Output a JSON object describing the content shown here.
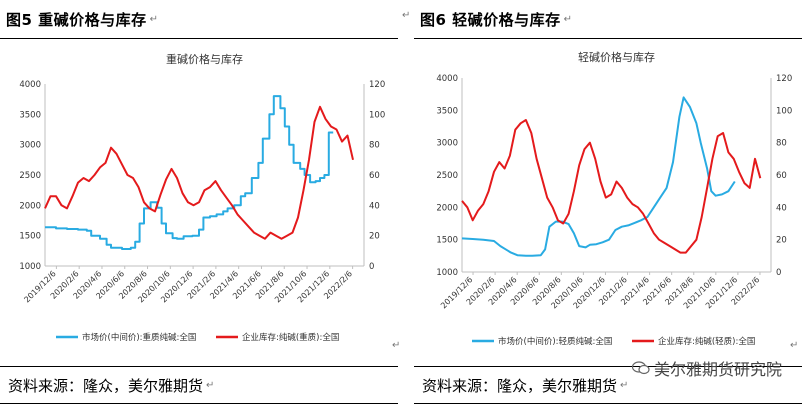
{
  "left_panel": {
    "header": "图5  重碱价格与库存",
    "source": "资料来源：隆众，美尔雅期货"
  },
  "right_panel": {
    "header": "图6    轻碱价格与库存",
    "source": "资料来源：隆众，美尔雅期货"
  },
  "paragraph_mark": "↵",
  "watermark": "美尔雅期货研究院",
  "chart_data": [
    {
      "type": "line",
      "title": "重碱价格与库存",
      "x_ticks": [
        "2019/12/6",
        "2020/2/6",
        "2020/4/6",
        "2020/6/6",
        "2020/8/6",
        "2020/10/6",
        "2020/12/6",
        "2021/2/6",
        "2021/4/6",
        "2021/6/6",
        "2021/8/6",
        "2021/10/6",
        "2021/12/6",
        "2022/2/6"
      ],
      "x_range": [
        0,
        29
      ],
      "ylim_left": [
        1000,
        4000
      ],
      "yticks_left": [
        1000,
        1500,
        2000,
        2500,
        3000,
        3500,
        4000
      ],
      "ylim_right": [
        0,
        120
      ],
      "yticks_right": [
        0,
        20,
        40,
        60,
        80,
        100,
        120
      ],
      "legend_position": "bottom",
      "series": [
        {
          "name": "市场价(中间价):重质纯碱:全国",
          "color": "#29abe2",
          "axis": "left",
          "step": true,
          "points": [
            [
              0,
              1640
            ],
            [
              1,
              1620
            ],
            [
              2,
              1610
            ],
            [
              3,
              1600
            ],
            [
              3.8,
              1580
            ],
            [
              4.2,
              1500
            ],
            [
              5,
              1450
            ],
            [
              5.6,
              1350
            ],
            [
              6,
              1300
            ],
            [
              7,
              1280
            ],
            [
              7.8,
              1300
            ],
            [
              8.2,
              1400
            ],
            [
              8.6,
              1700
            ],
            [
              9,
              1950
            ],
            [
              9.6,
              2050
            ],
            [
              10.2,
              1960
            ],
            [
              10.6,
              1700
            ],
            [
              11,
              1540
            ],
            [
              11.6,
              1460
            ],
            [
              12,
              1450
            ],
            [
              12.6,
              1490
            ],
            [
              13.4,
              1500
            ],
            [
              14,
              1600
            ],
            [
              14.4,
              1800
            ],
            [
              15,
              1820
            ],
            [
              15.6,
              1850
            ],
            [
              16.2,
              1900
            ],
            [
              16.6,
              1950
            ],
            [
              17.2,
              2000
            ],
            [
              17.8,
              2150
            ],
            [
              18.2,
              2200
            ],
            [
              18.8,
              2450
            ],
            [
              19.4,
              2700
            ],
            [
              19.8,
              3100
            ],
            [
              20.4,
              3500
            ],
            [
              20.8,
              3800
            ],
            [
              21.4,
              3600
            ],
            [
              21.8,
              3300
            ],
            [
              22.2,
              3000
            ],
            [
              22.6,
              2700
            ],
            [
              23.2,
              2600
            ],
            [
              23.6,
              2500
            ],
            [
              24.1,
              2380
            ],
            [
              24.6,
              2400
            ],
            [
              25,
              2450
            ],
            [
              25.4,
              2500
            ],
            [
              25.8,
              3200
            ],
            [
              26.2,
              3200
            ]
          ]
        },
        {
          "name": "企业库存:纯碱(重质):全国",
          "color": "#e41a1c",
          "axis": "right",
          "step": false,
          "points": [
            [
              0,
              38
            ],
            [
              0.5,
              46
            ],
            [
              1,
              46
            ],
            [
              1.5,
              40
            ],
            [
              2,
              38
            ],
            [
              2.5,
              46
            ],
            [
              3,
              55
            ],
            [
              3.5,
              58
            ],
            [
              4,
              56
            ],
            [
              4.5,
              60
            ],
            [
              5,
              65
            ],
            [
              5.5,
              68
            ],
            [
              6,
              78
            ],
            [
              6.5,
              74
            ],
            [
              7,
              67
            ],
            [
              7.5,
              60
            ],
            [
              8,
              58
            ],
            [
              8.5,
              52
            ],
            [
              9,
              42
            ],
            [
              9.5,
              38
            ],
            [
              10,
              36
            ],
            [
              10.5,
              47
            ],
            [
              11,
              57
            ],
            [
              11.5,
              64
            ],
            [
              12,
              58
            ],
            [
              12.5,
              48
            ],
            [
              13,
              42
            ],
            [
              13.5,
              40
            ],
            [
              14,
              42
            ],
            [
              14.5,
              50
            ],
            [
              15,
              52
            ],
            [
              15.5,
              56
            ],
            [
              16,
              50
            ],
            [
              16.5,
              45
            ],
            [
              17,
              40
            ],
            [
              17.5,
              34
            ],
            [
              18,
              30
            ],
            [
              18.5,
              26
            ],
            [
              19,
              22
            ],
            [
              19.5,
              20
            ],
            [
              20,
              18
            ],
            [
              20.5,
              22
            ],
            [
              21,
              20
            ],
            [
              21.5,
              18
            ],
            [
              22,
              20
            ],
            [
              22.5,
              22
            ],
            [
              23,
              32
            ],
            [
              23.5,
              50
            ],
            [
              24,
              70
            ],
            [
              24.5,
              95
            ],
            [
              25,
              105
            ],
            [
              25.5,
              97
            ],
            [
              26,
              92
            ],
            [
              26.5,
              90
            ],
            [
              27,
              82
            ],
            [
              27.5,
              86
            ],
            [
              28,
              70
            ]
          ]
        }
      ]
    },
    {
      "type": "line",
      "title": "轻碱价格与库存",
      "x_ticks": [
        "2019/12/6",
        "2020/2/6",
        "2020/4/6",
        "2020/6/6",
        "2020/8/6",
        "2020/10/6",
        "2020/12/6",
        "2021/2/6",
        "2021/4/6",
        "2021/6/6",
        "2021/8/6",
        "2021/10/6",
        "2021/12/6",
        "2022/2/6"
      ],
      "x_range": [
        0,
        29
      ],
      "ylim_left": [
        1000,
        4000
      ],
      "yticks_left": [
        1000,
        1500,
        2000,
        2500,
        3000,
        3500,
        4000
      ],
      "ylim_right": [
        0,
        120
      ],
      "yticks_right": [
        0,
        20,
        40,
        60,
        80,
        100,
        120
      ],
      "legend_position": "bottom",
      "series": [
        {
          "name": "市场价(中间价):轻质纯碱:全国",
          "color": "#29abe2",
          "axis": "left",
          "step": false,
          "points": [
            [
              0,
              1520
            ],
            [
              1,
              1510
            ],
            [
              2,
              1500
            ],
            [
              3,
              1480
            ],
            [
              3.6,
              1400
            ],
            [
              4,
              1360
            ],
            [
              4.6,
              1300
            ],
            [
              5.2,
              1260
            ],
            [
              6,
              1250
            ],
            [
              6.6,
              1250
            ],
            [
              7.4,
              1260
            ],
            [
              7.8,
              1350
            ],
            [
              8.2,
              1700
            ],
            [
              8.8,
              1780
            ],
            [
              9.4,
              1780
            ],
            [
              10,
              1740
            ],
            [
              10.5,
              1600
            ],
            [
              11,
              1400
            ],
            [
              11.6,
              1380
            ],
            [
              12,
              1420
            ],
            [
              12.6,
              1430
            ],
            [
              13.2,
              1460
            ],
            [
              13.8,
              1500
            ],
            [
              14.4,
              1650
            ],
            [
              15,
              1700
            ],
            [
              15.6,
              1720
            ],
            [
              16.2,
              1760
            ],
            [
              16.8,
              1800
            ],
            [
              17.4,
              1850
            ],
            [
              18,
              2000
            ],
            [
              18.6,
              2150
            ],
            [
              19.2,
              2300
            ],
            [
              19.8,
              2700
            ],
            [
              20.4,
              3400
            ],
            [
              20.8,
              3700
            ],
            [
              21.4,
              3550
            ],
            [
              22,
              3300
            ],
            [
              22.4,
              3000
            ],
            [
              23,
              2600
            ],
            [
              23.4,
              2250
            ],
            [
              23.8,
              2180
            ],
            [
              24.4,
              2200
            ],
            [
              25,
              2250
            ],
            [
              25.6,
              2400
            ]
          ]
        },
        {
          "name": "企业库存:纯碱(轻质):全国",
          "color": "#e41a1c",
          "axis": "right",
          "step": false,
          "points": [
            [
              0,
              44
            ],
            [
              0.5,
              40
            ],
            [
              1,
              32
            ],
            [
              1.5,
              38
            ],
            [
              2,
              42
            ],
            [
              2.5,
              50
            ],
            [
              3,
              62
            ],
            [
              3.5,
              68
            ],
            [
              4,
              64
            ],
            [
              4.5,
              72
            ],
            [
              5,
              88
            ],
            [
              5.5,
              92
            ],
            [
              6,
              94
            ],
            [
              6.5,
              86
            ],
            [
              7,
              70
            ],
            [
              7.5,
              58
            ],
            [
              8,
              46
            ],
            [
              8.5,
              40
            ],
            [
              9,
              32
            ],
            [
              9.5,
              30
            ],
            [
              10,
              36
            ],
            [
              10.5,
              50
            ],
            [
              11,
              66
            ],
            [
              11.5,
              76
            ],
            [
              12,
              80
            ],
            [
              12.5,
              70
            ],
            [
              13,
              56
            ],
            [
              13.5,
              46
            ],
            [
              14,
              48
            ],
            [
              14.5,
              56
            ],
            [
              15,
              52
            ],
            [
              15.5,
              46
            ],
            [
              16,
              42
            ],
            [
              16.5,
              40
            ],
            [
              17,
              36
            ],
            [
              17.5,
              30
            ],
            [
              18,
              24
            ],
            [
              18.5,
              20
            ],
            [
              19,
              18
            ],
            [
              19.5,
              16
            ],
            [
              20,
              14
            ],
            [
              20.5,
              12
            ],
            [
              21,
              12
            ],
            [
              21.5,
              16
            ],
            [
              22,
              20
            ],
            [
              22.5,
              34
            ],
            [
              23,
              52
            ],
            [
              23.5,
              70
            ],
            [
              24,
              84
            ],
            [
              24.5,
              86
            ],
            [
              25,
              74
            ],
            [
              25.5,
              70
            ],
            [
              26,
              62
            ],
            [
              26.5,
              55
            ],
            [
              27,
              52
            ],
            [
              27.5,
              70
            ],
            [
              28,
              58
            ]
          ]
        }
      ]
    }
  ]
}
